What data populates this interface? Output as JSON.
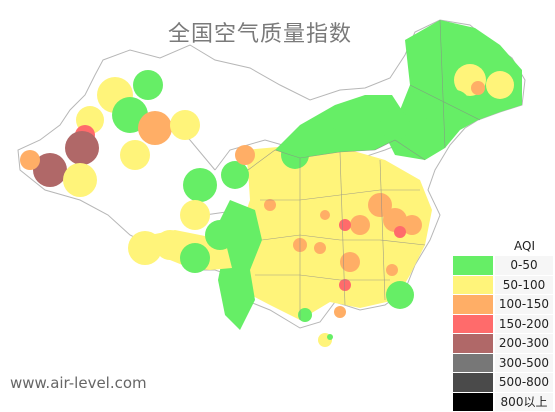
{
  "title": "全国空气质量指数",
  "watermark": "www.air-level.com",
  "legend": {
    "title": "AQI",
    "items": [
      {
        "label": "0-50",
        "color": "#66ee66"
      },
      {
        "label": "50-100",
        "color": "#fff47a"
      },
      {
        "label": "100-150",
        "color": "#ffae66"
      },
      {
        "label": "150-200",
        "color": "#ff6b6b"
      },
      {
        "label": "200-300",
        "color": "#b06868"
      },
      {
        "label": "300-500",
        "color": "#777777"
      },
      {
        "label": "500-800",
        "color": "#4a4a4a"
      },
      {
        "label": "800以上",
        "color": "#000000"
      }
    ]
  }
}
